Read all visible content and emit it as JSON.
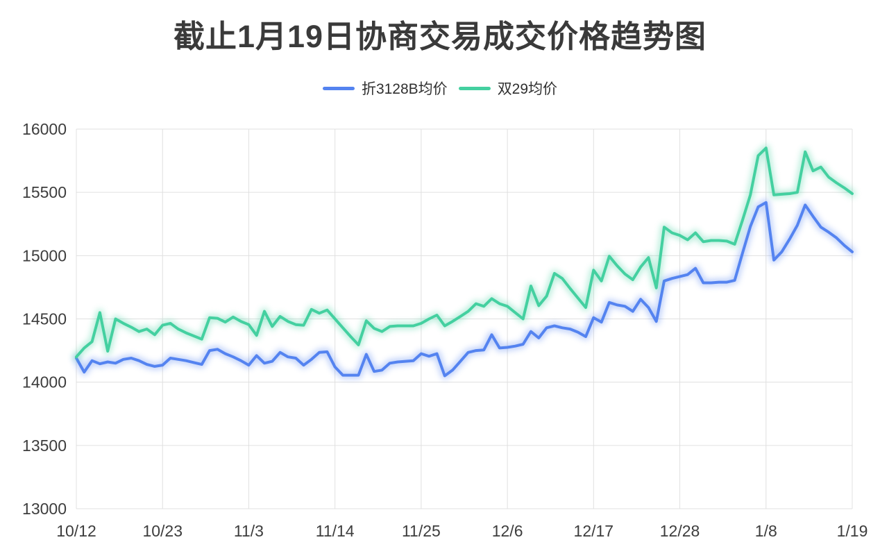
{
  "title": "截止1月19日协商交易成交价格趋势图",
  "legend": [
    {
      "label": "折3128B均价",
      "color": "#5483F0"
    },
    {
      "label": "双29均价",
      "color": "#44D0A0"
    }
  ],
  "colors": {
    "blue_series": "#5483F0",
    "green_series": "#44D0A0",
    "grid": "#e0e0e0",
    "axis_text": "#3d3d3d",
    "title_text": "#3a3a3a"
  },
  "chart_data": {
    "type": "line",
    "title": "截止1月19日协商交易成交价格趋势图",
    "xlabel": "",
    "ylabel": "",
    "ylim": [
      13000,
      16000
    ],
    "yticks": [
      13000,
      13500,
      14000,
      14500,
      15000,
      15500,
      16000
    ],
    "xtick_indices": [
      0,
      11,
      22,
      33,
      44,
      55,
      66,
      77,
      88,
      99
    ],
    "xtick_labels": [
      "10/12",
      "10/23",
      "11/3",
      "11/14",
      "11/25",
      "12/6",
      "12/17",
      "12/28",
      "1/8",
      "1/19"
    ],
    "grid": true,
    "legend_position": "top",
    "x": [
      "10/12",
      "10/13",
      "10/14",
      "10/15",
      "10/16",
      "10/17",
      "10/18",
      "10/19",
      "10/20",
      "10/21",
      "10/22",
      "10/23",
      "10/24",
      "10/25",
      "10/26",
      "10/27",
      "10/28",
      "10/29",
      "10/30",
      "10/31",
      "11/1",
      "11/2",
      "11/3",
      "11/4",
      "11/5",
      "11/6",
      "11/7",
      "11/8",
      "11/9",
      "11/10",
      "11/11",
      "11/12",
      "11/13",
      "11/14",
      "11/15",
      "11/16",
      "11/17",
      "11/18",
      "11/19",
      "11/20",
      "11/21",
      "11/22",
      "11/23",
      "11/24",
      "11/25",
      "11/26",
      "11/27",
      "11/28",
      "11/29",
      "11/30",
      "12/1",
      "12/2",
      "12/3",
      "12/4",
      "12/5",
      "12/6",
      "12/7",
      "12/8",
      "12/9",
      "12/10",
      "12/11",
      "12/12",
      "12/13",
      "12/14",
      "12/15",
      "12/16",
      "12/17",
      "12/18",
      "12/19",
      "12/20",
      "12/21",
      "12/22",
      "12/23",
      "12/24",
      "12/25",
      "12/26",
      "12/27",
      "12/28",
      "12/29",
      "12/30",
      "12/31",
      "1/1",
      "1/2",
      "1/3",
      "1/4",
      "1/5",
      "1/6",
      "1/7",
      "1/8",
      "1/9",
      "1/10",
      "1/11",
      "1/12",
      "1/13",
      "1/14",
      "1/15",
      "1/16",
      "1/17",
      "1/18",
      "1/19"
    ],
    "series": [
      {
        "name": "折3128B均价",
        "color": "#5483F0",
        "values": [
          14190,
          14080,
          14170,
          14145,
          14160,
          14150,
          14180,
          14190,
          14170,
          14140,
          14125,
          14135,
          14190,
          14180,
          14170,
          14155,
          14140,
          14250,
          14260,
          14225,
          14200,
          14170,
          14135,
          14210,
          14150,
          14165,
          14235,
          14200,
          14190,
          14135,
          14180,
          14235,
          14240,
          14120,
          14055,
          14055,
          14055,
          14220,
          14085,
          14095,
          14150,
          14160,
          14165,
          14170,
          14225,
          14205,
          14225,
          14050,
          14095,
          14165,
          14235,
          14250,
          14255,
          14375,
          14270,
          14275,
          14285,
          14300,
          14400,
          14350,
          14430,
          14445,
          14430,
          14420,
          14395,
          14360,
          14510,
          14475,
          14630,
          14610,
          14600,
          14560,
          14655,
          14590,
          14480,
          14800,
          14820,
          14835,
          14850,
          14900,
          14785,
          14785,
          14790,
          14790,
          14805,
          15020,
          15230,
          15385,
          15420,
          14965,
          15030,
          15130,
          15240,
          15400,
          15310,
          15225,
          15185,
          15140,
          15080,
          15030
        ]
      },
      {
        "name": "双29均价",
        "color": "#44D0A0",
        "values": [
          14200,
          14270,
          14320,
          14550,
          14245,
          14500,
          14465,
          14435,
          14400,
          14420,
          14375,
          14450,
          14465,
          14420,
          14390,
          14365,
          14340,
          14510,
          14505,
          14475,
          14515,
          14480,
          14455,
          14370,
          14560,
          14440,
          14520,
          14480,
          14455,
          14450,
          14575,
          14545,
          14570,
          14500,
          14430,
          14360,
          14295,
          14485,
          14425,
          14400,
          14440,
          14445,
          14445,
          14445,
          14465,
          14500,
          14530,
          14445,
          14480,
          14520,
          14560,
          14620,
          14600,
          14660,
          14620,
          14600,
          14550,
          14500,
          14760,
          14605,
          14680,
          14860,
          14820,
          14740,
          14665,
          14590,
          14885,
          14800,
          14995,
          14920,
          14855,
          14810,
          14910,
          14985,
          14745,
          15225,
          15180,
          15160,
          15125,
          15180,
          15110,
          15120,
          15120,
          15115,
          15090,
          15280,
          15480,
          15790,
          15850,
          15480,
          15485,
          15490,
          15500,
          15820,
          15670,
          15700,
          15620,
          15575,
          15535,
          15490
        ]
      }
    ]
  }
}
